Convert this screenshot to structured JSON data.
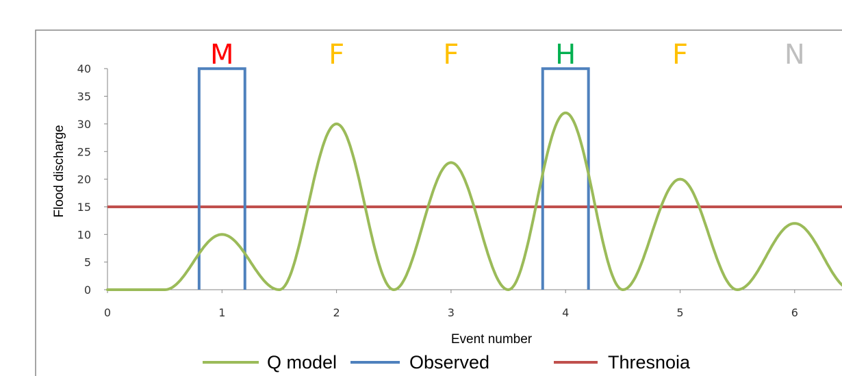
{
  "chart_data": {
    "type": "line",
    "title": "",
    "xlabel": "Event number",
    "ylabel": "Flood discharge",
    "xlim": [
      0,
      6.45
    ],
    "ylim": [
      0,
      40
    ],
    "x_ticks": [
      "0",
      "1",
      "2",
      "3",
      "4",
      "5",
      "6"
    ],
    "y_ticks": [
      "0",
      "5",
      "10",
      "15",
      "20",
      "25",
      "30",
      "35",
      "40"
    ],
    "grid": false,
    "legend_position": "bottom",
    "event_labels": [
      {
        "x": 1,
        "label": "M",
        "color": "#ff0000"
      },
      {
        "x": 2,
        "label": "F",
        "color": "#ffc000"
      },
      {
        "x": 3,
        "label": "F",
        "color": "#ffc000"
      },
      {
        "x": 4,
        "label": "H",
        "color": "#00b050"
      },
      {
        "x": 5,
        "label": "F",
        "color": "#ffc000"
      },
      {
        "x": 6,
        "label": "N",
        "color": "#bfbfbf"
      }
    ],
    "series": [
      {
        "name": "Q model",
        "color": "#9bbb59",
        "peaks": [
          {
            "x": 1,
            "y": 10
          },
          {
            "x": 2,
            "y": 30
          },
          {
            "x": 3,
            "y": 23
          },
          {
            "x": 4,
            "y": 32
          },
          {
            "x": 5,
            "y": 20
          },
          {
            "x": 6,
            "y": 12
          }
        ],
        "troughs_y": 0,
        "start": [
          [
            0,
            0
          ],
          [
            0.45,
            0
          ]
        ]
      },
      {
        "name": "Observed",
        "color": "#4f81bd",
        "pulses": [
          {
            "x_start": 0.8,
            "x_end": 1.2,
            "y": 40
          },
          {
            "x_start": 3.8,
            "x_end": 4.2,
            "y": 40
          }
        ]
      },
      {
        "name": "Thresnoia",
        "color": "#c0504d",
        "y": 15
      }
    ]
  }
}
